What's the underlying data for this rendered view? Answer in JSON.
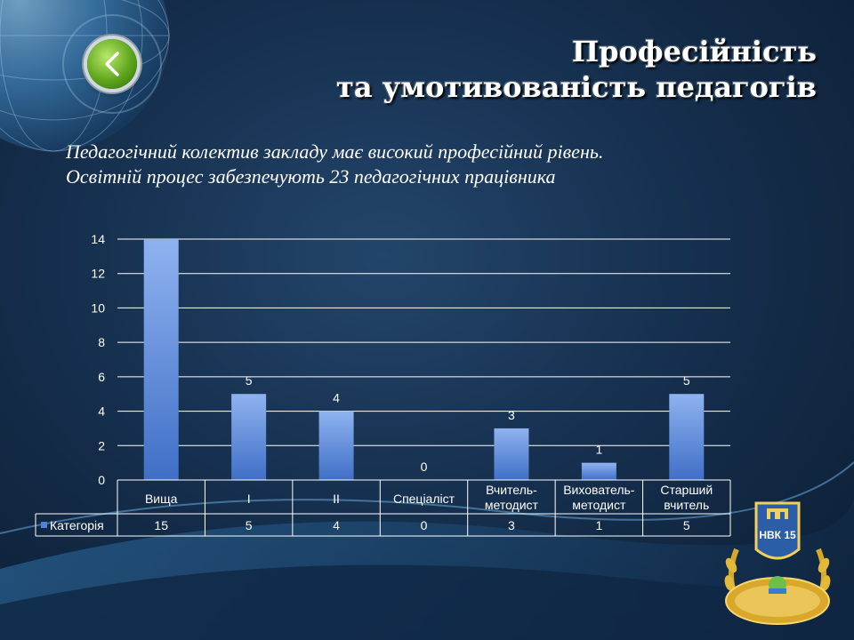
{
  "slide": {
    "title_line1": "Професійність",
    "title_line2": "та умотивованість педагогів",
    "intro": "Педагогічний колектив закладу має високий професійний рівень. Освітній процес забезпечують 23 педагогічних працівника",
    "emblem_text": "НВК 15"
  },
  "chart_data": {
    "type": "bar",
    "categories": [
      "Вища",
      "І",
      "ІІ",
      "Спеціаліст",
      "Вчитель-методист",
      "Вихователь-методист",
      "Старший вчитель"
    ],
    "category_lines": [
      [
        "Вища"
      ],
      [
        "І"
      ],
      [
        "ІІ"
      ],
      [
        "Спеціаліст"
      ],
      [
        "Вчитель-",
        "методист"
      ],
      [
        "Вихователь-",
        "методист"
      ],
      [
        "Старший",
        "вчитель"
      ]
    ],
    "series": [
      {
        "name": "Категорія",
        "values": [
          15,
          5,
          4,
          0,
          3,
          1,
          5
        ],
        "color": "#4f81d8"
      }
    ],
    "yticks": [
      "0",
      "2",
      "4",
      "6",
      "8",
      "10",
      "12",
      "14"
    ],
    "ylim": [
      0,
      14
    ],
    "grid": true,
    "data_table": true,
    "bar_labels": [
      "",
      "5",
      "4",
      "0",
      "3",
      "1",
      "5"
    ]
  },
  "colors": {
    "text": "#ffffff",
    "bar_top": "#8fb3f0",
    "bar_bottom": "#3f6fc6",
    "gridline": "#ffffff"
  }
}
